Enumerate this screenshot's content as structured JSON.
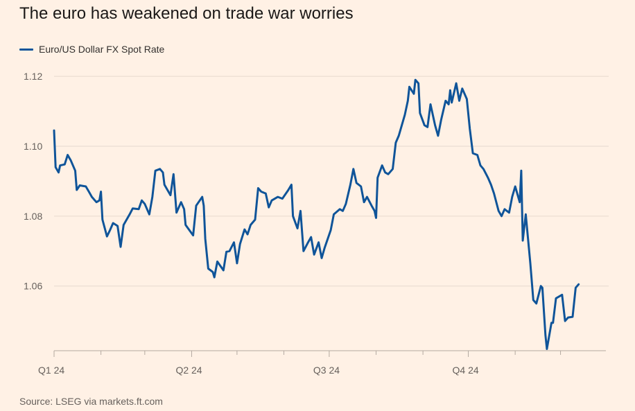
{
  "title": "The euro has weakened on trade war worries",
  "source": "Source: LSEG via markets.ft.com",
  "colors": {
    "background": "#FFF1E5",
    "series": "#0F5499",
    "grid": "#E6D9CE",
    "axis": "#B3A9A0"
  },
  "chart_data": {
    "type": "line",
    "title": "The euro has weakened on trade war worries",
    "xlabel": "",
    "ylabel": "",
    "ylim": [
      1.0415,
      1.123
    ],
    "yticks": [
      1.06,
      1.08,
      1.1,
      1.12
    ],
    "ytick_labels": [
      "1.06",
      "1.08",
      "1.10",
      "1.12"
    ],
    "xticks": [
      {
        "label": "Q1 24",
        "date": "2024-01-01"
      },
      {
        "label": "Q2 24",
        "date": "2024-04-01"
      },
      {
        "label": "Q3 24",
        "date": "2024-07-01"
      },
      {
        "label": "Q4 24",
        "date": "2024-10-01"
      }
    ],
    "xlim": [
      "2024-01-01",
      "2024-12-31"
    ],
    "grid": "horizontal",
    "legend": "top-left",
    "series": [
      {
        "name": "Euro/US Dollar FX Spot Rate",
        "color": "#0F5499",
        "points": [
          [
            "2024-01-01",
            1.1045
          ],
          [
            "2024-01-02",
            1.094
          ],
          [
            "2024-01-04",
            1.0925
          ],
          [
            "2024-01-05",
            1.0945
          ],
          [
            "2024-01-08",
            1.0948
          ],
          [
            "2024-01-10",
            1.0975
          ],
          [
            "2024-01-12",
            1.096
          ],
          [
            "2024-01-15",
            1.093
          ],
          [
            "2024-01-16",
            1.0875
          ],
          [
            "2024-01-18",
            1.0888
          ],
          [
            "2024-01-22",
            1.0885
          ],
          [
            "2024-01-24",
            1.087
          ],
          [
            "2024-01-26",
            1.0855
          ],
          [
            "2024-01-29",
            1.084
          ],
          [
            "2024-01-31",
            1.0845
          ],
          [
            "2024-02-01",
            1.087
          ],
          [
            "2024-02-02",
            1.079
          ],
          [
            "2024-02-05",
            1.0742
          ],
          [
            "2024-02-07",
            1.076
          ],
          [
            "2024-02-09",
            1.078
          ],
          [
            "2024-02-12",
            1.0772
          ],
          [
            "2024-02-14",
            1.0712
          ],
          [
            "2024-02-16",
            1.0775
          ],
          [
            "2024-02-20",
            1.0805
          ],
          [
            "2024-02-22",
            1.0822
          ],
          [
            "2024-02-26",
            1.082
          ],
          [
            "2024-02-28",
            1.0845
          ],
          [
            "2024-03-01",
            1.0835
          ],
          [
            "2024-03-04",
            1.0805
          ],
          [
            "2024-03-06",
            1.0855
          ],
          [
            "2024-03-08",
            1.093
          ],
          [
            "2024-03-11",
            1.0935
          ],
          [
            "2024-03-13",
            1.0925
          ],
          [
            "2024-03-14",
            1.089
          ],
          [
            "2024-03-18",
            1.086
          ],
          [
            "2024-03-20",
            1.092
          ],
          [
            "2024-03-22",
            1.081
          ],
          [
            "2024-03-25",
            1.084
          ],
          [
            "2024-03-27",
            1.082
          ],
          [
            "2024-03-28",
            1.0775
          ],
          [
            "2024-04-02",
            1.0745
          ],
          [
            "2024-04-04",
            1.083
          ],
          [
            "2024-04-08",
            1.0855
          ],
          [
            "2024-04-09",
            1.083
          ],
          [
            "2024-04-10",
            1.0735
          ],
          [
            "2024-04-12",
            1.065
          ],
          [
            "2024-04-15",
            1.064
          ],
          [
            "2024-04-16",
            1.0625
          ],
          [
            "2024-04-18",
            1.067
          ],
          [
            "2024-04-22",
            1.0645
          ],
          [
            "2024-04-24",
            1.0698
          ],
          [
            "2024-04-26",
            1.07
          ],
          [
            "2024-04-29",
            1.0725
          ],
          [
            "2024-05-01",
            1.0665
          ],
          [
            "2024-05-03",
            1.072
          ],
          [
            "2024-05-06",
            1.0762
          ],
          [
            "2024-05-08",
            1.0748
          ],
          [
            "2024-05-10",
            1.0775
          ],
          [
            "2024-05-13",
            1.079
          ],
          [
            "2024-05-15",
            1.088
          ],
          [
            "2024-05-17",
            1.087
          ],
          [
            "2024-05-20",
            1.0865
          ],
          [
            "2024-05-22",
            1.0825
          ],
          [
            "2024-05-24",
            1.0845
          ],
          [
            "2024-05-28",
            1.0855
          ],
          [
            "2024-05-31",
            1.085
          ],
          [
            "2024-06-04",
            1.0875
          ],
          [
            "2024-06-06",
            1.089
          ],
          [
            "2024-06-07",
            1.08
          ],
          [
            "2024-06-10",
            1.0765
          ],
          [
            "2024-06-12",
            1.0815
          ],
          [
            "2024-06-14",
            1.07
          ],
          [
            "2024-06-17",
            1.0725
          ],
          [
            "2024-06-19",
            1.074
          ],
          [
            "2024-06-21",
            1.069
          ],
          [
            "2024-06-24",
            1.0725
          ],
          [
            "2024-06-26",
            1.068
          ],
          [
            "2024-06-28",
            1.071
          ],
          [
            "2024-07-02",
            1.076
          ],
          [
            "2024-07-04",
            1.0805
          ],
          [
            "2024-07-08",
            1.082
          ],
          [
            "2024-07-10",
            1.0815
          ],
          [
            "2024-07-12",
            1.0835
          ],
          [
            "2024-07-15",
            1.089
          ],
          [
            "2024-07-17",
            1.0935
          ],
          [
            "2024-07-19",
            1.0895
          ],
          [
            "2024-07-22",
            1.0885
          ],
          [
            "2024-07-24",
            1.084
          ],
          [
            "2024-07-26",
            1.0855
          ],
          [
            "2024-07-29",
            1.083
          ],
          [
            "2024-07-31",
            1.0815
          ],
          [
            "2024-08-01",
            1.0795
          ],
          [
            "2024-08-02",
            1.091
          ],
          [
            "2024-08-05",
            1.0945
          ],
          [
            "2024-08-07",
            1.0925
          ],
          [
            "2024-08-09",
            1.092
          ],
          [
            "2024-08-12",
            1.0935
          ],
          [
            "2024-08-14",
            1.101
          ],
          [
            "2024-08-16",
            1.103
          ],
          [
            "2024-08-20",
            1.109
          ],
          [
            "2024-08-22",
            1.113
          ],
          [
            "2024-08-23",
            1.117
          ],
          [
            "2024-08-26",
            1.115
          ],
          [
            "2024-08-27",
            1.119
          ],
          [
            "2024-08-29",
            1.118
          ],
          [
            "2024-08-30",
            1.1095
          ],
          [
            "2024-09-02",
            1.106
          ],
          [
            "2024-09-04",
            1.1055
          ],
          [
            "2024-09-06",
            1.112
          ],
          [
            "2024-09-09",
            1.106
          ],
          [
            "2024-09-11",
            1.103
          ],
          [
            "2024-09-13",
            1.1075
          ],
          [
            "2024-09-16",
            1.113
          ],
          [
            "2024-09-18",
            1.112
          ],
          [
            "2024-09-19",
            1.116
          ],
          [
            "2024-09-20",
            1.1125
          ],
          [
            "2024-09-23",
            1.118
          ],
          [
            "2024-09-25",
            1.113
          ],
          [
            "2024-09-27",
            1.1165
          ],
          [
            "2024-09-30",
            1.1135
          ],
          [
            "2024-10-02",
            1.105
          ],
          [
            "2024-10-04",
            1.098
          ],
          [
            "2024-10-07",
            1.0975
          ],
          [
            "2024-10-09",
            1.0945
          ],
          [
            "2024-10-11",
            1.0935
          ],
          [
            "2024-10-14",
            1.091
          ],
          [
            "2024-10-16",
            1.089
          ],
          [
            "2024-10-18",
            1.0865
          ],
          [
            "2024-10-21",
            1.0815
          ],
          [
            "2024-10-23",
            1.08
          ],
          [
            "2024-10-25",
            1.082
          ],
          [
            "2024-10-28",
            1.081
          ],
          [
            "2024-10-30",
            1.0855
          ],
          [
            "2024-11-01",
            1.0885
          ],
          [
            "2024-11-04",
            1.084
          ],
          [
            "2024-11-05",
            1.093
          ],
          [
            "2024-11-06",
            1.073
          ],
          [
            "2024-11-08",
            1.0805
          ],
          [
            "2024-11-11",
            1.0665
          ],
          [
            "2024-11-13",
            1.056
          ],
          [
            "2024-11-15",
            1.055
          ],
          [
            "2024-11-18",
            1.06
          ],
          [
            "2024-11-19",
            1.0595
          ],
          [
            "2024-11-21",
            1.046
          ],
          [
            "2024-11-22",
            1.042
          ],
          [
            "2024-11-25",
            1.0495
          ],
          [
            "2024-11-26",
            1.0495
          ],
          [
            "2024-11-28",
            1.0565
          ],
          [
            "2024-12-02",
            1.0575
          ],
          [
            "2024-12-04",
            1.05
          ],
          [
            "2024-12-06",
            1.051
          ],
          [
            "2024-12-09",
            1.0512
          ],
          [
            "2024-12-11",
            1.0595
          ],
          [
            "2024-12-13",
            1.0605
          ]
        ]
      }
    ]
  }
}
